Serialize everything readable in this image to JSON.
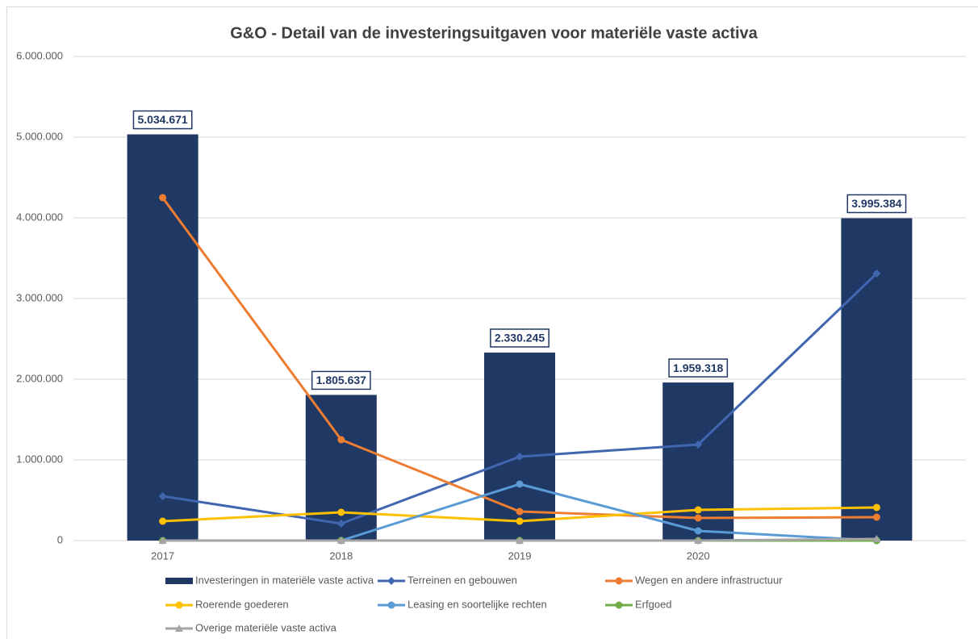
{
  "chart_data": {
    "type": "bar",
    "title": "G&O - Detail van de investeringsuitgaven voor materiële vaste activa",
    "categories": [
      "2017",
      "2018",
      "2019",
      "2020",
      null
    ],
    "ylim": [
      0,
      6000000
    ],
    "yticks": [
      0,
      {
        "value": 1000000,
        "label": "1.000.000"
      },
      {
        "value": 2000000,
        "label": "2.000.000"
      },
      {
        "value": 3000000,
        "label": "3.000.000"
      },
      {
        "value": 4000000,
        "label": "4.000.000"
      },
      {
        "value": 5000000,
        "label": "5.000.000"
      },
      {
        "value": 6000000,
        "label": "6.000.000"
      }
    ],
    "grid": true,
    "legend": "bottom",
    "series": [
      {
        "name": "Investeringen in materiële vaste activa",
        "type": "bar",
        "color": "#203864",
        "values": [
          5034671,
          1805637,
          2330245,
          1959318,
          3995384
        ],
        "value_labels": [
          "5.034.671",
          "1.805.637",
          "2.330.245",
          "1.959.318",
          "3.995.384"
        ]
      },
      {
        "name": "Terreinen en gebouwen",
        "type": "line",
        "marker": "diamond",
        "color": "#4166b0",
        "values": [
          550000,
          210000,
          1040000,
          1190000,
          3310000
        ]
      },
      {
        "name": "Wegen en andere infrastructuur",
        "type": "line",
        "marker": "circle",
        "color": "#ed7d31",
        "values": [
          4250000,
          1250000,
          360000,
          280000,
          290000
        ]
      },
      {
        "name": "Roerende goederen",
        "type": "line",
        "marker": "circle",
        "color": "#ffc000",
        "values": [
          240000,
          350000,
          240000,
          380000,
          410000
        ]
      },
      {
        "name": "Leasing en soortelijke rechten",
        "type": "line",
        "marker": "circle",
        "color": "#5b9bd5",
        "values": [
          null,
          0,
          700000,
          120000,
          0
        ]
      },
      {
        "name": "Erfgoed",
        "type": "line",
        "marker": "circle",
        "color": "#70ad47",
        "values": [
          0,
          0,
          0,
          0,
          0
        ]
      },
      {
        "name": "Overige materiële vaste activa",
        "type": "line",
        "marker": "triangle",
        "color": "#a5a5a5",
        "values": [
          0,
          0,
          0,
          0,
          20000
        ]
      }
    ]
  }
}
